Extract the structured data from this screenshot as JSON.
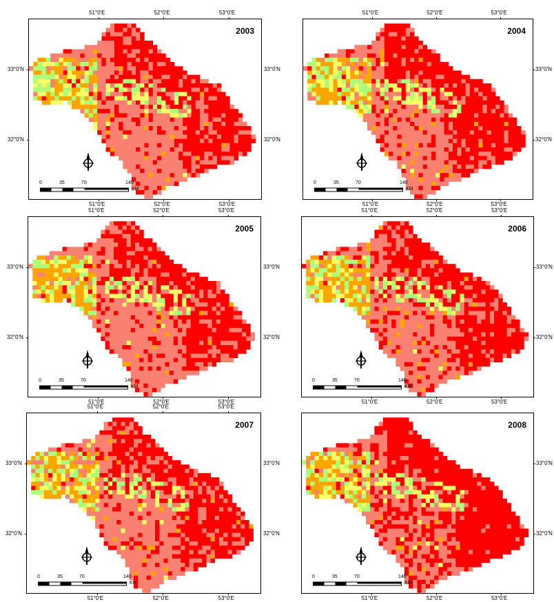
{
  "panels": [
    {
      "year": "2003"
    },
    {
      "year": "2004"
    },
    {
      "year": "2005"
    },
    {
      "year": "2006"
    },
    {
      "year": "2007"
    },
    {
      "year": "2008"
    }
  ],
  "axes": {
    "lon_labels": [
      "51°0'E",
      "52°0'E",
      "53°0'E"
    ],
    "lat_labels": [
      "33°0'N",
      "32°0'N"
    ]
  },
  "scale_bar": {
    "ticks": [
      "0",
      "35",
      "70",
      "140"
    ],
    "unit": "KM"
  },
  "colors": {
    "class_1": "#ff0000",
    "class_2": "#fa8072",
    "class_3": "#ffa500",
    "class_4": "#ffff66",
    "class_5": "#adff7a"
  },
  "icons": {
    "north_arrow": "north-arrow-icon"
  }
}
